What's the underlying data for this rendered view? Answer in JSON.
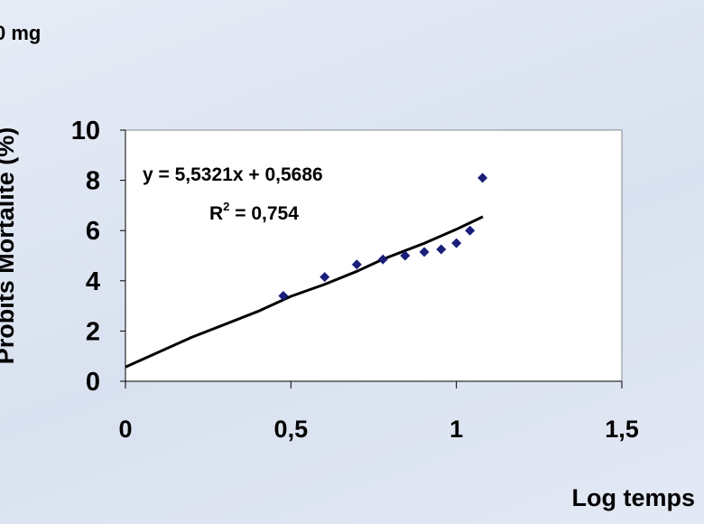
{
  "header_fragment": "0 mg",
  "chart_data": {
    "type": "scatter",
    "xlabel": "Log temps",
    "ylabel": "Probits Mortalité (%)",
    "xlim": [
      0,
      1.5
    ],
    "ylim": [
      0,
      10
    ],
    "x_ticks": [
      0,
      0.5,
      1,
      1.5
    ],
    "x_tick_labels": [
      "0",
      "0,5",
      "1",
      "1,5"
    ],
    "y_ticks": [
      0,
      2,
      4,
      6,
      8,
      10
    ],
    "y_tick_labels": [
      "0",
      "2",
      "4",
      "6",
      "8",
      "10"
    ],
    "grid": false,
    "series": [
      {
        "type": "scatter",
        "marker": "diamond",
        "color": "#1a1f7a",
        "points": [
          {
            "x": 0.477,
            "y": 3.4
          },
          {
            "x": 0.602,
            "y": 4.15
          },
          {
            "x": 0.699,
            "y": 4.65
          },
          {
            "x": 0.778,
            "y": 4.85
          },
          {
            "x": 0.845,
            "y": 5.0
          },
          {
            "x": 0.903,
            "y": 5.15
          },
          {
            "x": 0.954,
            "y": 5.25
          },
          {
            "x": 1.0,
            "y": 5.5
          },
          {
            "x": 1.041,
            "y": 6.0
          },
          {
            "x": 1.079,
            "y": 8.1
          }
        ]
      },
      {
        "type": "line",
        "color": "#000000",
        "points": [
          {
            "x": 0,
            "y": 0.5686
          },
          {
            "x": 0.2,
            "y": 1.75
          },
          {
            "x": 0.4,
            "y": 2.78
          },
          {
            "x": 0.5,
            "y": 3.38
          },
          {
            "x": 0.6,
            "y": 3.85
          },
          {
            "x": 0.7,
            "y": 4.38
          },
          {
            "x": 0.78,
            "y": 4.87
          },
          {
            "x": 0.9,
            "y": 5.48
          },
          {
            "x": 1.0,
            "y": 6.05
          },
          {
            "x": 1.08,
            "y": 6.55
          }
        ]
      }
    ],
    "trendline_equation": "y = 5,5321x + 0,5686",
    "r_squared_label": "R",
    "r_squared_exponent": "2",
    "r_squared_value": " = 0,754"
  }
}
